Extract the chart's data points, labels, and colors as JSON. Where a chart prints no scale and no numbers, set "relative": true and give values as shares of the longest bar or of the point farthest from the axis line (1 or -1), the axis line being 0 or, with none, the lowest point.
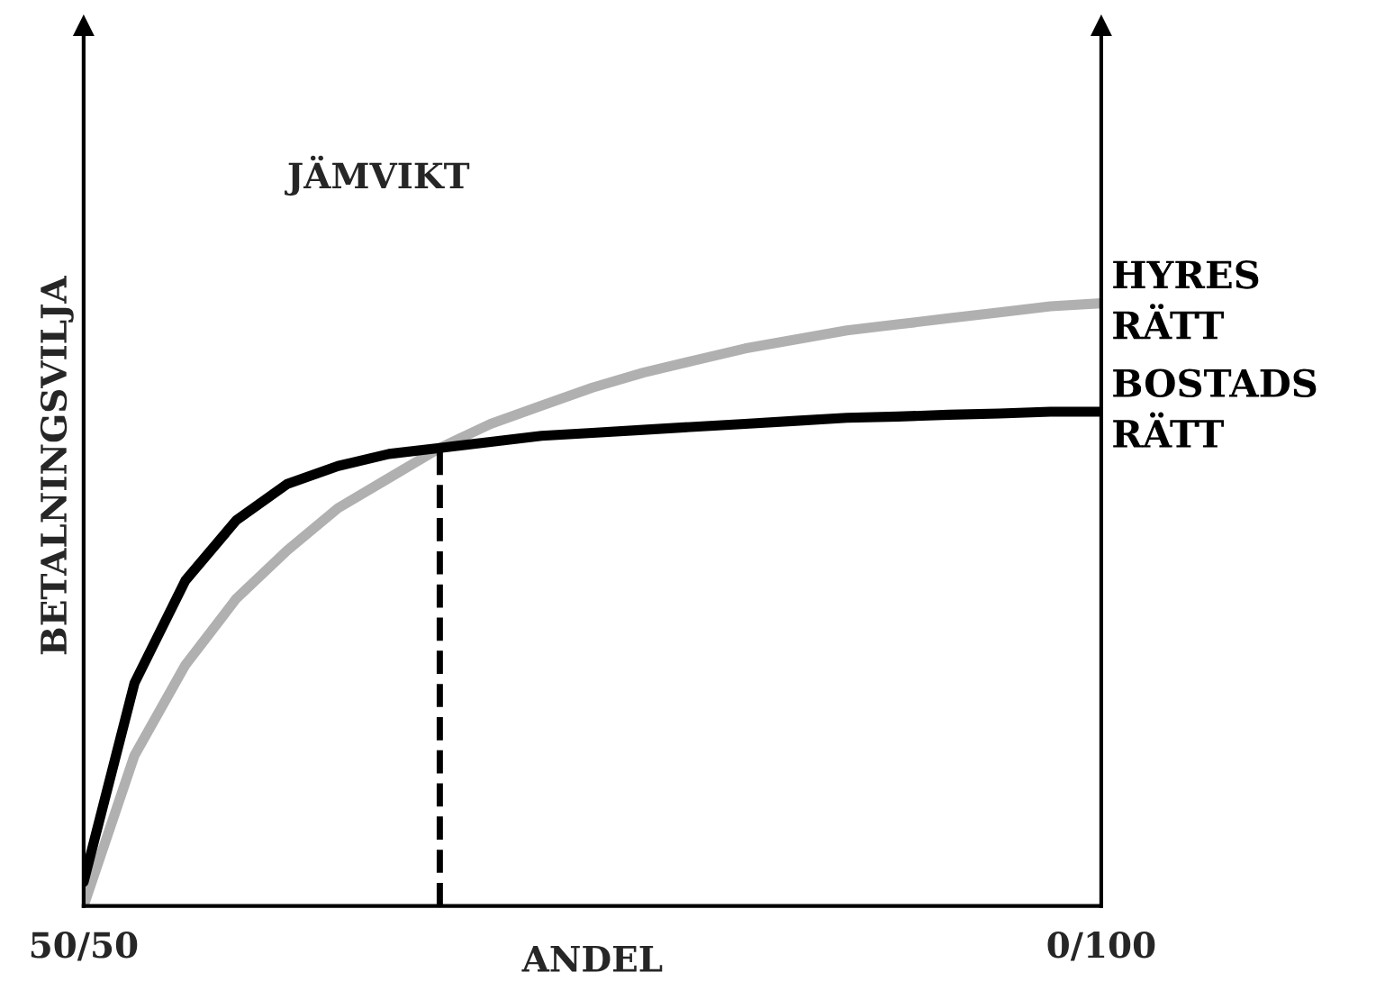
{
  "chart_data": {
    "type": "line",
    "relative": true,
    "xlabel": "ANDEL",
    "ylabel": "BETALNINGSVILJA",
    "categories": [
      "50/50",
      null,
      null,
      null,
      null,
      null,
      null,
      null,
      null,
      null,
      null,
      null,
      null,
      null,
      null,
      null,
      null,
      null,
      null,
      null,
      "0/100"
    ],
    "series": [
      {
        "name": "HYRES\nRÄTT",
        "color": "#b0b0b0",
        "values": [
          0,
          0.25,
          0.4,
          0.51,
          0.59,
          0.66,
          0.71,
          0.76,
          0.8,
          0.83,
          0.86,
          0.885,
          0.905,
          0.925,
          0.94,
          0.955,
          0.965,
          0.975,
          0.985,
          0.995,
          1.0
        ]
      },
      {
        "name": "BOSTADS\nRÄTT",
        "color": "#000000",
        "values": [
          0.04,
          0.37,
          0.54,
          0.64,
          0.7,
          0.73,
          0.75,
          0.76,
          0.77,
          0.78,
          0.785,
          0.79,
          0.795,
          0.8,
          0.805,
          0.81,
          0.812,
          0.815,
          0.817,
          0.82,
          0.82
        ]
      }
    ],
    "annotations": [
      "JÄMVIKT"
    ],
    "legend": false
  }
}
